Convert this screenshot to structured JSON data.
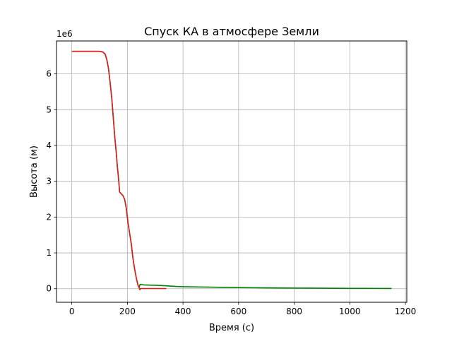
{
  "chart_data": {
    "type": "line",
    "title": "Спуск КА в атмосфере Земли",
    "xlabel": "Время (с)",
    "ylabel": "Высота (м)",
    "y_offset_label": "1e6",
    "xlim": [
      -55,
      1205
    ],
    "ylim": [
      -380000,
      6920000
    ],
    "x_ticks": [
      0,
      200,
      400,
      600,
      800,
      1000,
      1200
    ],
    "x_tick_labels": [
      "0",
      "200",
      "400",
      "600",
      "800",
      "1000",
      "1200"
    ],
    "y_ticks": [
      0,
      1000000,
      2000000,
      3000000,
      4000000,
      5000000,
      6000000
    ],
    "y_tick_labels": [
      "0",
      "1",
      "2",
      "3",
      "4",
      "5",
      "6"
    ],
    "grid": true,
    "series": [
      {
        "color": "#008000",
        "x": [
          0,
          50,
          100,
          112,
          120,
          126,
          132,
          138,
          144,
          150,
          155,
          160,
          164,
          168,
          172,
          178,
          184,
          190,
          196,
          202,
          208,
          214,
          220,
          226,
          232,
          238,
          242,
          245,
          247,
          250,
          255,
          260,
          280,
          300,
          320,
          340,
          360,
          380,
          400,
          450,
          500,
          550,
          600,
          650,
          700,
          750,
          800,
          850,
          900,
          950,
          1000,
          1050,
          1100,
          1150
        ],
        "y": [
          6630000,
          6630000,
          6630000,
          6610000,
          6550000,
          6400000,
          6150000,
          5750000,
          5300000,
          4700000,
          4200000,
          3800000,
          3400000,
          3100000,
          2700000,
          2650000,
          2600000,
          2500000,
          2250000,
          1850000,
          1550000,
          1250000,
          850000,
          550000,
          300000,
          100000,
          30000,
          110000,
          120000,
          115000,
          110000,
          105000,
          100000,
          95000,
          90000,
          80000,
          70000,
          60000,
          55000,
          48000,
          42000,
          36000,
          31000,
          27000,
          23000,
          20000,
          17000,
          15000,
          13000,
          11000,
          9000,
          8000,
          7000,
          6000
        ]
      },
      {
        "color": "#e31a1c",
        "x": [
          0,
          50,
          100,
          112,
          120,
          126,
          132,
          138,
          144,
          150,
          155,
          160,
          164,
          168,
          172,
          178,
          184,
          190,
          196,
          202,
          208,
          214,
          220,
          226,
          232,
          238,
          242,
          245,
          247,
          250,
          300,
          340
        ],
        "y": [
          6630000,
          6630000,
          6630000,
          6610000,
          6550000,
          6400000,
          6150000,
          5750000,
          5300000,
          4700000,
          4200000,
          3800000,
          3400000,
          3100000,
          2700000,
          2650000,
          2600000,
          2500000,
          2250000,
          1850000,
          1550000,
          1250000,
          850000,
          550000,
          300000,
          100000,
          30000,
          -30000,
          5000,
          5000,
          5000,
          5000
        ]
      }
    ]
  }
}
